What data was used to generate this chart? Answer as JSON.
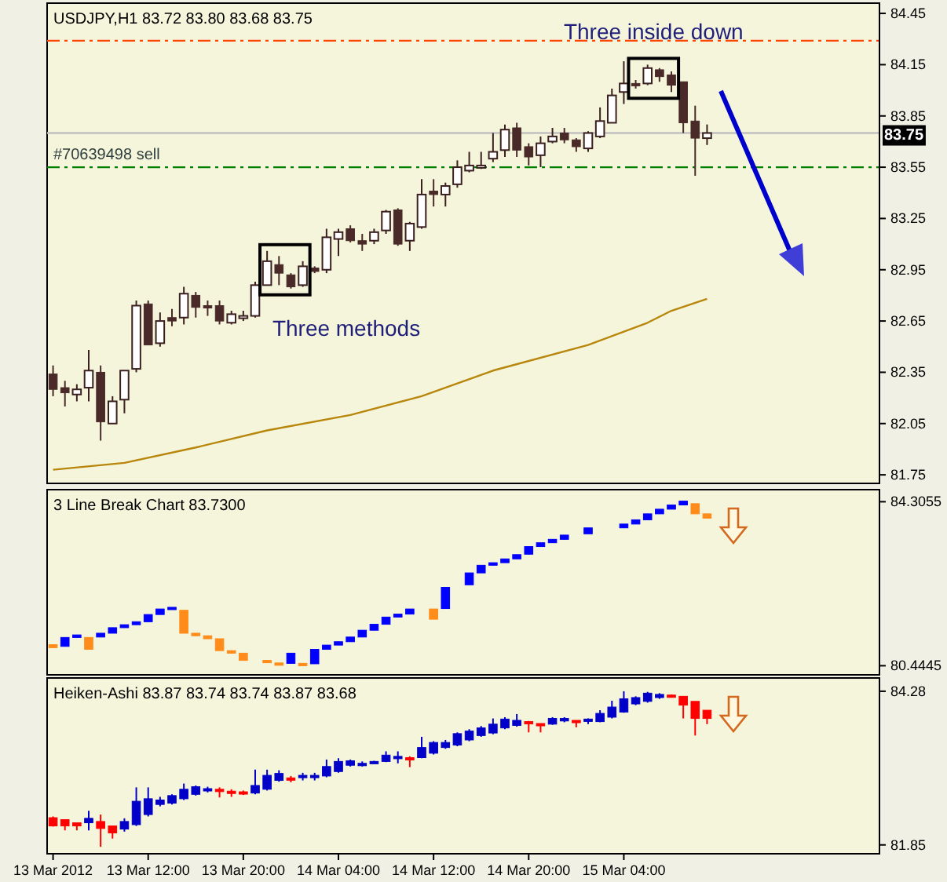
{
  "chart_data": [
    {
      "type": "candlestick",
      "title": "USDJPY,H1 83.72 83.80 83.68 83.75",
      "tick_labels": "y",
      "x": [
        "2012-03-13T04:00",
        "2012-03-13T05:00",
        "2012-03-13T06:00",
        "2012-03-13T07:00",
        "2012-03-13T08:00",
        "2012-03-13T09:00",
        "2012-03-13T10:00",
        "2012-03-13T11:00",
        "2012-03-13T12:00",
        "2012-03-13T13:00",
        "2012-03-13T14:00",
        "2012-03-13T15:00",
        "2012-03-13T16:00",
        "2012-03-13T17:00",
        "2012-03-13T18:00",
        "2012-03-13T19:00",
        "2012-03-13T20:00",
        "2012-03-13T21:00",
        "2012-03-13T22:00",
        "2012-03-13T23:00",
        "2012-03-14T00:00",
        "2012-03-14T01:00",
        "2012-03-14T02:00",
        "2012-03-14T03:00",
        "2012-03-14T04:00",
        "2012-03-14T05:00",
        "2012-03-14T06:00",
        "2012-03-14T07:00",
        "2012-03-14T08:00",
        "2012-03-14T09:00",
        "2012-03-14T10:00",
        "2012-03-14T11:00",
        "2012-03-14T12:00",
        "2012-03-14T13:00",
        "2012-03-14T14:00",
        "2012-03-14T15:00",
        "2012-03-14T16:00",
        "2012-03-14T17:00",
        "2012-03-14T18:00",
        "2012-03-14T19:00",
        "2012-03-14T20:00",
        "2012-03-14T21:00",
        "2012-03-14T22:00",
        "2012-03-14T23:00",
        "2012-03-15T00:00",
        "2012-03-15T01:00",
        "2012-03-15T02:00",
        "2012-03-15T03:00",
        "2012-03-15T04:00",
        "2012-03-15T05:00",
        "2012-03-15T06:00",
        "2012-03-15T07:00",
        "2012-03-15T08:00",
        "2012-03-15T09:00",
        "2012-03-15T10:00",
        "2012-03-15T11:00"
      ],
      "ohlc": [
        [
          82.34,
          82.39,
          82.21,
          82.25
        ],
        [
          82.26,
          82.3,
          82.15,
          82.23
        ],
        [
          82.22,
          82.28,
          82.18,
          82.25
        ],
        [
          82.26,
          82.48,
          82.18,
          82.36
        ],
        [
          82.35,
          82.39,
          81.95,
          82.06
        ],
        [
          82.05,
          82.21,
          82.05,
          82.18
        ],
        [
          82.19,
          82.36,
          82.11,
          82.36
        ],
        [
          82.37,
          82.77,
          82.35,
          82.74
        ],
        [
          82.75,
          82.77,
          82.51,
          82.51
        ],
        [
          82.52,
          82.7,
          82.5,
          82.65
        ],
        [
          82.67,
          82.72,
          82.62,
          82.65
        ],
        [
          82.67,
          82.85,
          82.63,
          82.81
        ],
        [
          82.8,
          82.82,
          82.67,
          82.73
        ],
        [
          82.74,
          82.77,
          82.68,
          82.73
        ],
        [
          82.74,
          82.77,
          82.63,
          82.65
        ],
        [
          82.64,
          82.71,
          82.63,
          82.69
        ],
        [
          82.68,
          82.71,
          82.65,
          82.68
        ],
        [
          82.68,
          82.88,
          82.67,
          82.86
        ],
        [
          82.86,
          83.06,
          82.86,
          83.0
        ],
        [
          82.98,
          83.03,
          82.86,
          82.93
        ],
        [
          82.92,
          82.93,
          82.84,
          82.85
        ],
        [
          82.86,
          83.0,
          82.85,
          82.97
        ],
        [
          82.96,
          82.97,
          82.93,
          82.94
        ],
        [
          82.95,
          83.19,
          82.93,
          83.14
        ],
        [
          83.13,
          83.19,
          83.03,
          83.17
        ],
        [
          83.19,
          83.21,
          83.11,
          83.12
        ],
        [
          83.12,
          83.16,
          83.06,
          83.1
        ],
        [
          83.12,
          83.19,
          83.1,
          83.17
        ],
        [
          83.18,
          83.3,
          83.16,
          83.29
        ],
        [
          83.3,
          83.31,
          83.09,
          83.1
        ],
        [
          83.12,
          83.23,
          83.06,
          83.22
        ],
        [
          83.2,
          83.48,
          83.19,
          83.39
        ],
        [
          83.41,
          83.48,
          83.32,
          83.39
        ],
        [
          83.39,
          83.46,
          83.32,
          83.44
        ],
        [
          83.45,
          83.59,
          83.43,
          83.55
        ],
        [
          83.53,
          83.64,
          83.52,
          83.56
        ],
        [
          83.56,
          83.64,
          83.54,
          83.56
        ],
        [
          83.6,
          83.75,
          83.58,
          83.64
        ],
        [
          83.65,
          83.8,
          83.61,
          83.77
        ],
        [
          83.78,
          83.81,
          83.61,
          83.65
        ],
        [
          83.67,
          83.69,
          83.56,
          83.61
        ],
        [
          83.62,
          83.73,
          83.55,
          83.69
        ],
        [
          83.7,
          83.78,
          83.69,
          83.73
        ],
        [
          83.75,
          83.78,
          83.69,
          83.71
        ],
        [
          83.71,
          83.72,
          83.64,
          83.67
        ],
        [
          83.66,
          83.76,
          83.64,
          83.75
        ],
        [
          83.73,
          83.9,
          83.72,
          83.82
        ],
        [
          83.81,
          84.01,
          83.81,
          83.97
        ],
        [
          83.99,
          84.17,
          83.92,
          84.04
        ],
        [
          84.04,
          84.06,
          84.01,
          84.03
        ],
        [
          84.04,
          84.15,
          84.03,
          84.13
        ],
        [
          84.12,
          84.13,
          84.05,
          84.08
        ],
        [
          84.09,
          84.11,
          83.99,
          84.03
        ],
        [
          84.05,
          84.05,
          83.75,
          83.81
        ],
        [
          83.82,
          83.91,
          83.5,
          83.72
        ],
        [
          83.72,
          83.8,
          83.68,
          83.75
        ]
      ],
      "colors": [
        "#4a2a28",
        "#4a2a28",
        "#ffffff",
        "#ffffff",
        "#4a2a28",
        "#ffffff",
        "#ffffff",
        "#ffffff",
        "#4a2a28",
        "#ffffff",
        "#4a2a28",
        "#ffffff",
        "#4a2a28",
        "#4a2a28",
        "#4a2a28",
        "#ffffff",
        "#ffffff",
        "#ffffff",
        "#ffffff",
        "#4a2a28",
        "#4a2a28",
        "#ffffff",
        "#4a2a28",
        "#ffffff",
        "#ffffff",
        "#4a2a28",
        "#4a2a28",
        "#ffffff",
        "#ffffff",
        "#4a2a28",
        "#ffffff",
        "#ffffff",
        "#4a2a28",
        "#ffffff",
        "#ffffff",
        "#ffffff",
        "#ffffff",
        "#ffffff",
        "#ffffff",
        "#4a2a28",
        "#4a2a28",
        "#ffffff",
        "#ffffff",
        "#4a2a28",
        "#4a2a28",
        "#ffffff",
        "#ffffff",
        "#ffffff",
        "#ffffff",
        "#4a2a28",
        "#ffffff",
        "#4a2a28",
        "#4a2a28",
        "#4a2a28",
        "#4a2a28",
        "#ffffff"
      ],
      "series": [
        {
          "type": "line",
          "color": "#b8860b",
          "x": [
            "2012-03-13T04:00",
            "2012-03-13T10:00",
            "2012-03-13T16:00",
            "2012-03-13T22:00",
            "2012-03-14T05:00",
            "2012-03-14T11:00",
            "2012-03-14T17:00",
            "2012-03-15T01:00",
            "2012-03-15T06:00",
            "2012-03-15T08:00",
            "2012-03-15T11:00"
          ],
          "values": [
            81.78,
            81.82,
            81.91,
            82.01,
            82.1,
            82.21,
            82.36,
            82.51,
            82.64,
            82.71,
            82.78
          ]
        }
      ],
      "xlim": [
        "2012-03-13T03:30",
        "2012-03-16T01:30"
      ],
      "ylim": [
        81.7,
        84.51
      ],
      "yticks": [
        84.45,
        84.15,
        83.85,
        83.55,
        83.25,
        82.95,
        82.65,
        82.35,
        82.05,
        81.75
      ],
      "ref_lines": [
        {
          "axis": "y",
          "value": 84.29,
          "color": "#ff4500",
          "line_style": "dashed"
        },
        {
          "axis": "y",
          "value": 83.55,
          "label": "#70639498 sell",
          "color": "#008000",
          "line_style": "dashed"
        },
        {
          "axis": "y",
          "value": 83.75,
          "label": "83.75",
          "color": "#c0c0c0",
          "line_style": "solid"
        }
      ],
      "annotations": [
        "Three methods",
        "Three inside down"
      ]
    },
    {
      "type": "candlestick",
      "title": "3 Line Break Chart 83.7300",
      "tick_labels": "y",
      "x": [
        "2012-03-13T04:00",
        "2012-03-13T05:00",
        "2012-03-13T06:00",
        "2012-03-13T07:00",
        "2012-03-13T08:00",
        "2012-03-13T09:00",
        "2012-03-13T10:00",
        "2012-03-13T11:00",
        "2012-03-13T12:00",
        "2012-03-13T13:00",
        "2012-03-13T14:00",
        "2012-03-13T15:00",
        "2012-03-13T16:00",
        "2012-03-13T17:00",
        "2012-03-13T18:00",
        "2012-03-13T19:00",
        "2012-03-13T20:00",
        "2012-03-13T22:00",
        "2012-03-13T23:00",
        "2012-03-14T00:00",
        "2012-03-14T01:00",
        "2012-03-14T02:00",
        "2012-03-14T03:00",
        "2012-03-14T04:00",
        "2012-03-14T05:00",
        "2012-03-14T06:00",
        "2012-03-14T07:00",
        "2012-03-14T08:00",
        "2012-03-14T09:00",
        "2012-03-14T10:00",
        "2012-03-14T12:00",
        "2012-03-14T13:00",
        "2012-03-14T15:00",
        "2012-03-14T16:00",
        "2012-03-14T17:00",
        "2012-03-14T18:00",
        "2012-03-14T19:00",
        "2012-03-14T20:00",
        "2012-03-14T21:00",
        "2012-03-14T22:00",
        "2012-03-14T23:00",
        "2012-03-15T01:00",
        "2012-03-15T04:00",
        "2012-03-15T05:00",
        "2012-03-15T06:00",
        "2012-03-15T07:00",
        "2012-03-15T08:00",
        "2012-03-15T09:00",
        "2012-03-15T10:00",
        "2012-03-15T11:00"
      ],
      "ohlc": [
        [
          80.94,
          80.94,
          80.87,
          80.87
        ],
        [
          80.9,
          81.11,
          80.9,
          81.11
        ],
        [
          81.11,
          81.17,
          81.11,
          81.17
        ],
        [
          81.11,
          81.11,
          80.83,
          80.83
        ],
        [
          81.12,
          81.21,
          81.12,
          81.21
        ],
        [
          81.21,
          81.34,
          81.21,
          81.34
        ],
        [
          81.34,
          81.41,
          81.34,
          81.41
        ],
        [
          81.41,
          81.48,
          81.41,
          81.48
        ],
        [
          81.48,
          81.65,
          81.48,
          81.65
        ],
        [
          81.65,
          81.78,
          81.65,
          81.78
        ],
        [
          81.78,
          81.82,
          81.78,
          81.82
        ],
        [
          81.75,
          81.75,
          81.21,
          81.21
        ],
        [
          81.21,
          81.21,
          81.15,
          81.15
        ],
        [
          81.15,
          81.15,
          81.08,
          81.08
        ],
        [
          81.08,
          81.08,
          80.8,
          80.8
        ],
        [
          80.8,
          80.8,
          80.74,
          80.74
        ],
        [
          80.74,
          80.74,
          80.57,
          80.57
        ],
        [
          80.57,
          80.57,
          80.53,
          80.53
        ],
        [
          80.51,
          80.51,
          80.47,
          80.47
        ],
        [
          80.5,
          80.74,
          80.5,
          80.74
        ],
        [
          80.5,
          80.5,
          80.46,
          80.46
        ],
        [
          80.49,
          80.83,
          80.49,
          80.83
        ],
        [
          80.83,
          80.93,
          80.83,
          80.93
        ],
        [
          80.93,
          81.01,
          80.93,
          81.01
        ],
        [
          81.01,
          81.12,
          81.01,
          81.12
        ],
        [
          81.12,
          81.28,
          81.12,
          81.28
        ],
        [
          81.28,
          81.42,
          81.28,
          81.42
        ],
        [
          81.42,
          81.59,
          81.42,
          81.59
        ],
        [
          81.59,
          81.66,
          81.59,
          81.66
        ],
        [
          81.66,
          81.78,
          81.66,
          81.78
        ],
        [
          81.78,
          81.78,
          81.54,
          81.54
        ],
        [
          81.79,
          82.29,
          81.79,
          82.29
        ],
        [
          82.35,
          82.63,
          82.35,
          82.63
        ],
        [
          82.63,
          82.81,
          82.63,
          82.81
        ],
        [
          82.81,
          82.87,
          82.81,
          82.87
        ],
        [
          82.87,
          82.96,
          82.87,
          82.96
        ],
        [
          82.96,
          83.06,
          82.96,
          83.06
        ],
        [
          83.07,
          83.25,
          83.07,
          83.25
        ],
        [
          83.25,
          83.34,
          83.25,
          83.34
        ],
        [
          83.34,
          83.42,
          83.34,
          83.42
        ],
        [
          83.42,
          83.52,
          83.42,
          83.52
        ],
        [
          83.55,
          83.69,
          83.55,
          83.69
        ],
        [
          83.69,
          83.78,
          83.69,
          83.78
        ],
        [
          83.78,
          83.88,
          83.78,
          83.88
        ],
        [
          83.88,
          84.02,
          83.88,
          84.02
        ],
        [
          84.02,
          84.13,
          84.02,
          84.13
        ],
        [
          84.13,
          84.23,
          84.13,
          84.23
        ],
        [
          84.23,
          84.32,
          84.23,
          84.32
        ],
        [
          84.26,
          84.26,
          84.02,
          84.02
        ],
        [
          84.02,
          84.02,
          83.92,
          83.92
        ]
      ],
      "colors": [
        "#ff8c1a",
        "#0000ff",
        "#0000ff",
        "#ff8c1a",
        "#0000ff",
        "#0000ff",
        "#0000ff",
        "#0000ff",
        "#0000ff",
        "#0000ff",
        "#0000ff",
        "#ff8c1a",
        "#ff8c1a",
        "#ff8c1a",
        "#ff8c1a",
        "#ff8c1a",
        "#ff8c1a",
        "#ff8c1a",
        "#ff8c1a",
        "#0000ff",
        "#ff8c1a",
        "#0000ff",
        "#0000ff",
        "#0000ff",
        "#0000ff",
        "#0000ff",
        "#0000ff",
        "#0000ff",
        "#0000ff",
        "#0000ff",
        "#ff8c1a",
        "#0000ff",
        "#0000ff",
        "#0000ff",
        "#0000ff",
        "#0000ff",
        "#0000ff",
        "#0000ff",
        "#0000ff",
        "#0000ff",
        "#0000ff",
        "#0000ff",
        "#0000ff",
        "#0000ff",
        "#0000ff",
        "#0000ff",
        "#0000ff",
        "#0000ff",
        "#ff8c1a",
        "#ff8c1a"
      ],
      "xlim": [
        "2012-03-13T03:30",
        "2012-03-16T01:30"
      ],
      "ylim": [
        80.23,
        84.59
      ],
      "yticks": [
        84.3055,
        80.4445
      ]
    },
    {
      "type": "candlestick",
      "title": "Heiken-Ashi 83.87 83.74 83.74 83.87 83.68",
      "x": [
        "2012-03-13T04:00",
        "2012-03-13T05:00",
        "2012-03-13T06:00",
        "2012-03-13T07:00",
        "2012-03-13T08:00",
        "2012-03-13T09:00",
        "2012-03-13T10:00",
        "2012-03-13T11:00",
        "2012-03-13T12:00",
        "2012-03-13T13:00",
        "2012-03-13T14:00",
        "2012-03-13T15:00",
        "2012-03-13T16:00",
        "2012-03-13T17:00",
        "2012-03-13T18:00",
        "2012-03-13T19:00",
        "2012-03-13T20:00",
        "2012-03-13T21:00",
        "2012-03-13T22:00",
        "2012-03-13T23:00",
        "2012-03-14T00:00",
        "2012-03-14T01:00",
        "2012-03-14T02:00",
        "2012-03-14T03:00",
        "2012-03-14T04:00",
        "2012-03-14T05:00",
        "2012-03-14T06:00",
        "2012-03-14T07:00",
        "2012-03-14T08:00",
        "2012-03-14T09:00",
        "2012-03-14T10:00",
        "2012-03-14T11:00",
        "2012-03-14T12:00",
        "2012-03-14T13:00",
        "2012-03-14T14:00",
        "2012-03-14T15:00",
        "2012-03-14T16:00",
        "2012-03-14T17:00",
        "2012-03-14T18:00",
        "2012-03-14T19:00",
        "2012-03-14T20:00",
        "2012-03-14T21:00",
        "2012-03-14T22:00",
        "2012-03-14T23:00",
        "2012-03-15T00:00",
        "2012-03-15T01:00",
        "2012-03-15T02:00",
        "2012-03-15T03:00",
        "2012-03-15T04:00",
        "2012-03-15T05:00",
        "2012-03-15T06:00",
        "2012-03-15T07:00",
        "2012-03-15T08:00",
        "2012-03-15T09:00",
        "2012-03-15T10:00",
        "2012-03-15T11:00"
      ],
      "ohlc": [
        [
          82.28,
          82.3,
          82.14,
          82.15
        ],
        [
          82.25,
          82.25,
          82.08,
          82.15
        ],
        [
          82.2,
          82.2,
          82.08,
          82.15
        ],
        [
          82.2,
          82.39,
          82.08,
          82.27
        ],
        [
          82.22,
          82.33,
          81.82,
          82.11
        ],
        [
          82.15,
          82.15,
          81.95,
          82.04
        ],
        [
          82.1,
          82.27,
          82.06,
          82.22
        ],
        [
          82.17,
          82.76,
          82.15,
          82.54
        ],
        [
          82.33,
          82.76,
          82.3,
          82.58
        ],
        [
          82.49,
          82.61,
          82.46,
          82.56
        ],
        [
          82.51,
          82.65,
          82.49,
          82.63
        ],
        [
          82.58,
          82.82,
          82.56,
          82.73
        ],
        [
          82.65,
          82.79,
          82.63,
          82.77
        ],
        [
          82.72,
          82.77,
          82.68,
          82.74
        ],
        [
          82.73,
          82.76,
          82.6,
          82.7
        ],
        [
          82.7,
          82.73,
          82.61,
          82.67
        ],
        [
          82.69,
          82.71,
          82.64,
          82.66
        ],
        [
          82.67,
          83.04,
          82.65,
          82.79
        ],
        [
          82.73,
          83.04,
          82.71,
          82.95
        ],
        [
          82.87,
          83.03,
          82.85,
          82.98
        ],
        [
          82.91,
          82.94,
          82.84,
          82.89
        ],
        [
          82.93,
          82.99,
          82.87,
          82.95
        ],
        [
          82.93,
          82.99,
          82.87,
          82.95
        ],
        [
          82.94,
          83.2,
          82.92,
          83.09
        ],
        [
          83.01,
          83.22,
          82.99,
          83.17
        ],
        [
          83.11,
          83.2,
          83.09,
          83.18
        ],
        [
          83.12,
          83.17,
          83.09,
          83.14
        ],
        [
          83.16,
          83.18,
          83.15,
          83.17
        ],
        [
          83.17,
          83.33,
          83.16,
          83.27
        ],
        [
          83.22,
          83.33,
          83.14,
          83.25
        ],
        [
          83.23,
          83.25,
          83.08,
          83.2
        ],
        [
          83.23,
          83.56,
          83.22,
          83.39
        ],
        [
          83.3,
          83.49,
          83.28,
          83.47
        ],
        [
          83.39,
          83.51,
          83.37,
          83.47
        ],
        [
          83.43,
          83.63,
          83.41,
          83.61
        ],
        [
          83.51,
          83.68,
          83.49,
          83.65
        ],
        [
          83.58,
          83.73,
          83.56,
          83.7
        ],
        [
          83.62,
          83.85,
          83.6,
          83.76
        ],
        [
          83.7,
          83.87,
          83.68,
          83.84
        ],
        [
          83.74,
          83.92,
          83.72,
          83.82
        ],
        [
          83.8,
          83.81,
          83.63,
          83.77
        ],
        [
          83.77,
          83.77,
          83.63,
          83.76
        ],
        [
          83.76,
          83.87,
          83.75,
          83.85
        ],
        [
          83.81,
          83.87,
          83.79,
          83.85
        ],
        [
          83.82,
          83.82,
          83.71,
          83.8
        ],
        [
          83.82,
          83.85,
          83.76,
          83.84
        ],
        [
          83.8,
          83.98,
          83.79,
          83.93
        ],
        [
          83.87,
          84.13,
          83.85,
          84.03
        ],
        [
          83.95,
          84.28,
          83.94,
          84.16
        ],
        [
          84.08,
          84.2,
          84.06,
          84.18
        ],
        [
          84.12,
          84.27,
          84.1,
          84.25
        ],
        [
          84.18,
          84.25,
          84.16,
          84.23
        ],
        [
          84.22,
          84.23,
          84.18,
          84.19
        ],
        [
          84.2,
          84.2,
          83.85,
          84.06
        ],
        [
          84.12,
          84.12,
          83.58,
          83.85
        ],
        [
          83.98,
          83.98,
          83.76,
          83.85
        ]
      ],
      "colors": [
        "#ff0000",
        "#ff0000",
        "#ff0000",
        "#0000c8",
        "#ff0000",
        "#ff0000",
        "#0000c8",
        "#0000c8",
        "#0000c8",
        "#0000c8",
        "#0000c8",
        "#0000c8",
        "#0000c8",
        "#0000c8",
        "#ff0000",
        "#ff0000",
        "#ff0000",
        "#0000c8",
        "#0000c8",
        "#0000c8",
        "#ff0000",
        "#0000c8",
        "#0000c8",
        "#0000c8",
        "#0000c8",
        "#0000c8",
        "#0000c8",
        "#0000c8",
        "#0000c8",
        "#0000c8",
        "#ff0000",
        "#0000c8",
        "#0000c8",
        "#0000c8",
        "#0000c8",
        "#0000c8",
        "#0000c8",
        "#0000c8",
        "#0000c8",
        "#0000c8",
        "#ff0000",
        "#ff0000",
        "#0000c8",
        "#0000c8",
        "#ff0000",
        "#0000c8",
        "#0000c8",
        "#0000c8",
        "#0000c8",
        "#0000c8",
        "#0000c8",
        "#0000c8",
        "#ff0000",
        "#ff0000",
        "#ff0000",
        "#ff0000"
      ],
      "xlim": [
        "2012-03-13T03:30",
        "2012-03-16T01:30"
      ],
      "ylim": [
        81.71,
        84.49
      ],
      "yticks": [
        84.28,
        81.85
      ],
      "xticks": [
        {
          "value": "2012-03-13T04:00",
          "label": "13 Mar 2012"
        },
        {
          "value": "2012-03-13T12:00",
          "label": "13 Mar 12:00"
        },
        {
          "value": "2012-03-13T20:00",
          "label": "13 Mar 20:00"
        },
        {
          "value": "2012-03-14T04:00",
          "label": "14 Mar 04:00"
        },
        {
          "value": "2012-03-14T12:00",
          "label": "14 Mar 12:00"
        },
        {
          "value": "2012-03-14T20:00",
          "label": "14 Mar 20:00"
        },
        {
          "value": "2012-03-15T04:00",
          "label": "15 Mar 04:00"
        }
      ]
    }
  ]
}
